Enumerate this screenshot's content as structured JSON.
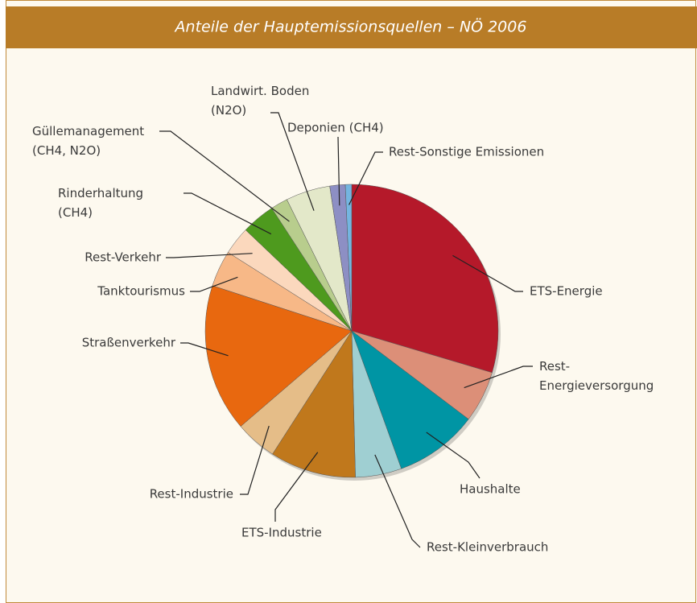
{
  "chart_data": {
    "type": "pie",
    "title": "Anteile der Hauptemissionsquellen – NÖ 2006",
    "categories": [
      "ETS-Energie",
      "Rest-\nEnergieversorgung",
      "Haushalte",
      "Rest-Kleinverbrauch",
      "ETS-Industrie",
      "Rest-Industrie",
      "Straßenverkehr",
      "Tanktourismus",
      "Rest-Verkehr",
      "Rinderhaltung\n(CH4)",
      "Güllemanagement\n(CH4, N2O)",
      "Landwirt. Boden\n(N2O)",
      "Deponien (CH4)",
      "Rest-Sonstige Emissionen"
    ],
    "values": [
      29.6,
      5.7,
      9.2,
      5.1,
      9.5,
      4.6,
      16.3,
      4.0,
      3.1,
      3.7,
      1.9,
      4.9,
      1.7,
      0.7
    ],
    "colors": [
      "#b5192a",
      "#dc8f78",
      "#0095a4",
      "#9fcfd2",
      "#c0781c",
      "#e5bd88",
      "#e8680f",
      "#f7b887",
      "#fbd8bd",
      "#4e9a1e",
      "#b8cd8d",
      "#e3e8c9",
      "#8d8fc4",
      "#74b5e0"
    ]
  }
}
